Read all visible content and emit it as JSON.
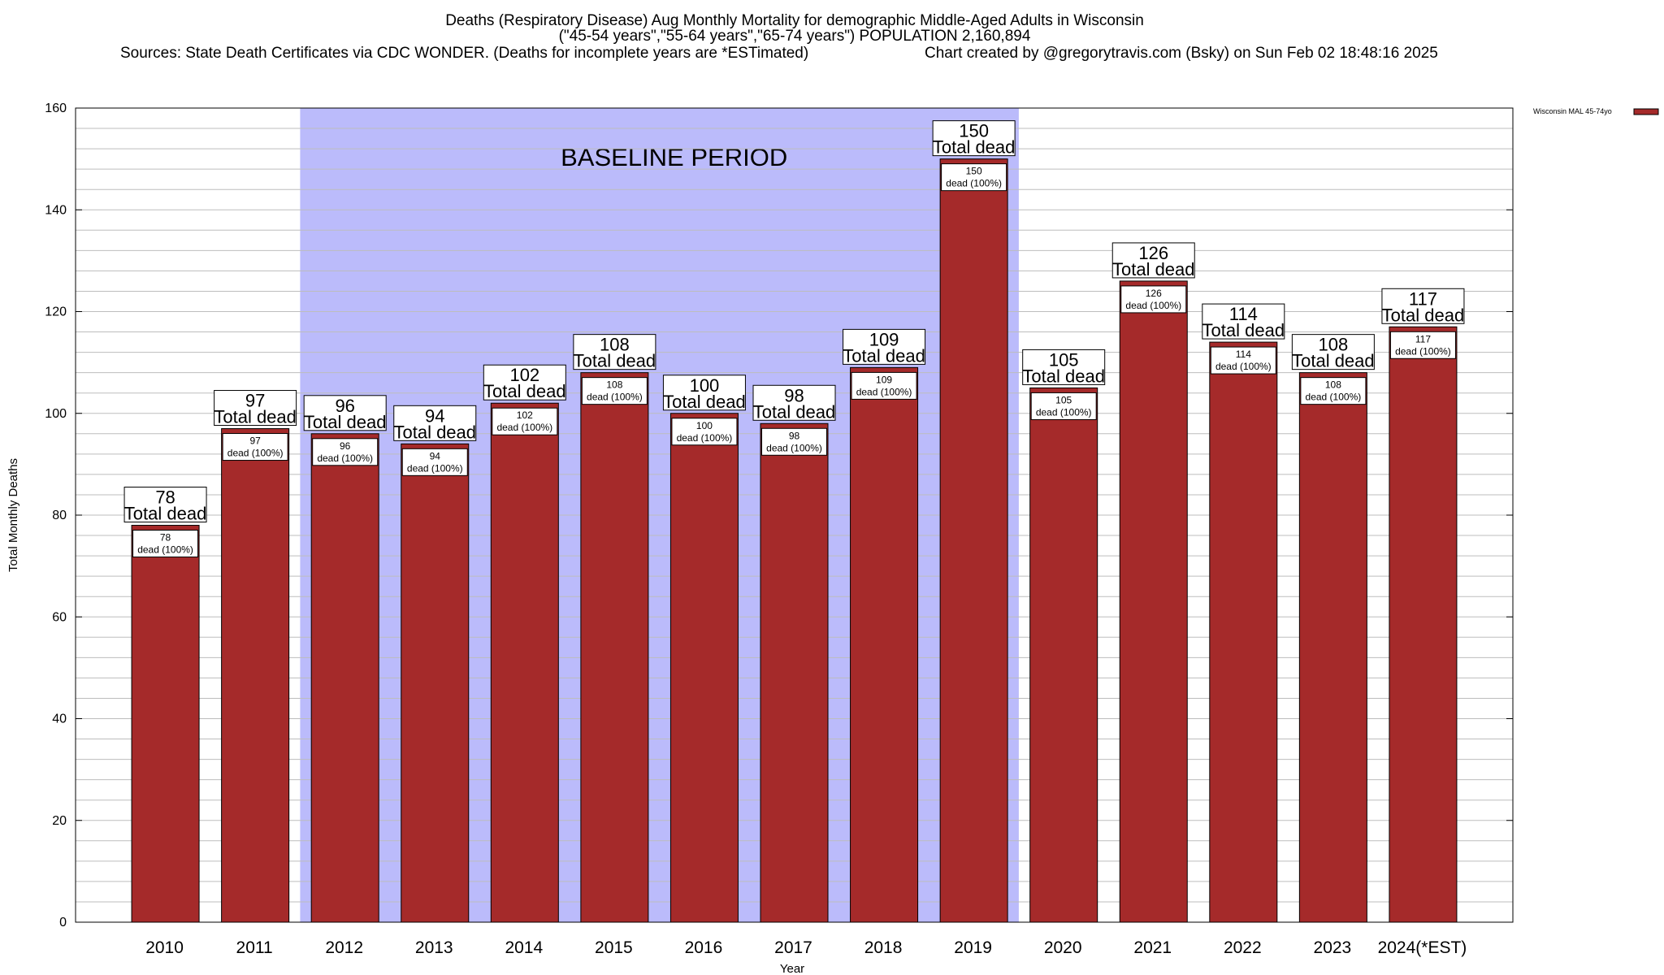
{
  "chart_data": {
    "type": "bar",
    "title_lines": [
      "Deaths (Respiratory Disease) Aug Monthly Mortality for demographic Middle-Aged Adults in Wisconsin",
      "(\"45-54 years\",\"55-64 years\",\"65-74 years\") POPULATION 2,160,894",
      "Sources: State Death Certificates via CDC WONDER. (Deaths for incomplete years are *ESTimated)",
      "Chart created by @gregorytravis.com (Bsky) on Sun Feb 02 18:48:16 2025"
    ],
    "categories": [
      "2010",
      "2011",
      "2012",
      "2013",
      "2014",
      "2015",
      "2016",
      "2017",
      "2018",
      "2019",
      "2020",
      "2021",
      "2022",
      "2023",
      "2024(*EST)"
    ],
    "values": [
      78,
      97,
      96,
      94,
      102,
      108,
      100,
      98,
      109,
      150,
      105,
      126,
      114,
      108,
      117
    ],
    "bar_top_label": "Total dead",
    "bar_inner_label": "dead (100%)",
    "xlabel": "Year",
    "ylabel": "Total Monthly Deaths",
    "ylim": [
      0,
      160
    ],
    "yticks": [
      0,
      20,
      40,
      60,
      80,
      100,
      120,
      140,
      160
    ],
    "minor_grid_step": 4,
    "baseline_period": {
      "label": "BASELINE PERIOD",
      "start": "2012",
      "end": "2019"
    },
    "legend": {
      "label": "Wisconsin MAL 45-74yo",
      "position": "top-right"
    },
    "colors": {
      "bar": "#a52a2a",
      "baseline_band": "#bbbbfb",
      "grid": "#bdbdbd"
    }
  }
}
